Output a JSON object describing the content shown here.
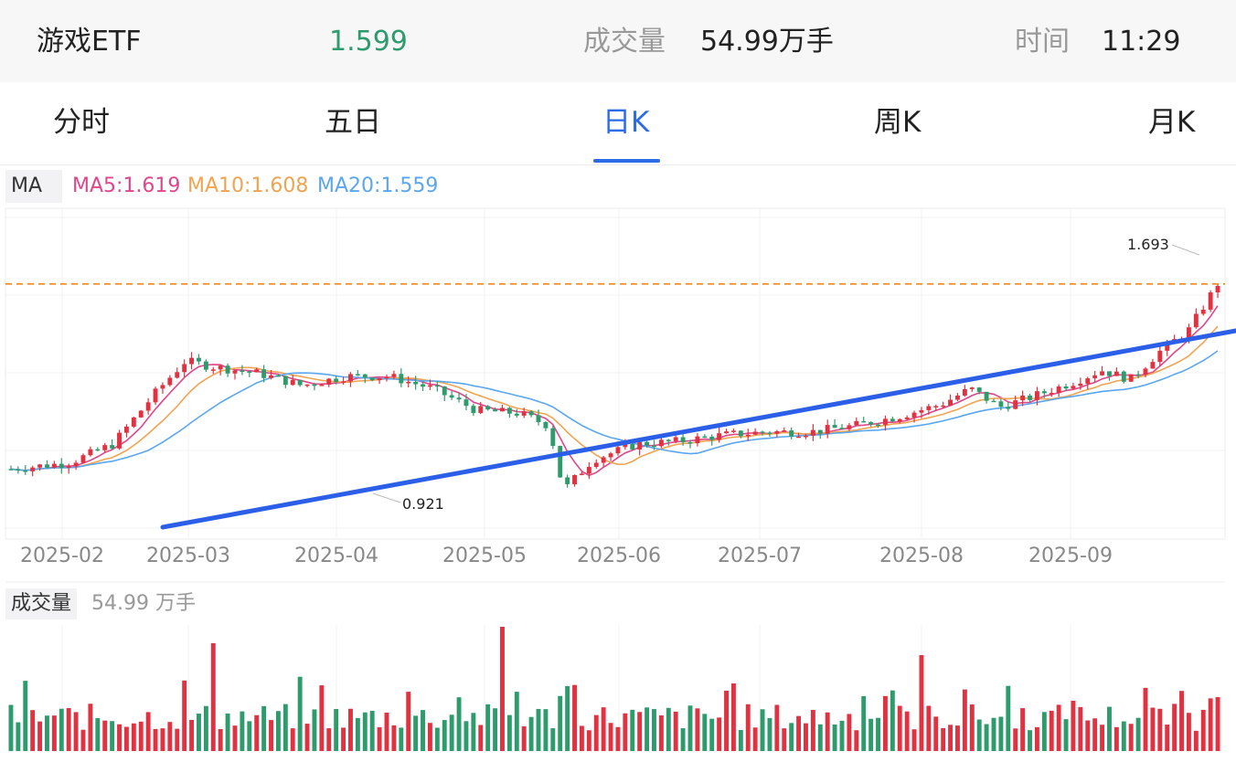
{
  "header": {
    "name": "游戏ETF",
    "price": "1.599",
    "volume_label": "成交量",
    "volume_value": "54.99万手",
    "time_label": "时间",
    "time_value": "11:29"
  },
  "tabs": [
    {
      "label": "分时",
      "active": false
    },
    {
      "label": "五日",
      "active": false
    },
    {
      "label": "日K",
      "active": true
    },
    {
      "label": "周K",
      "active": false
    },
    {
      "label": "月K",
      "active": false
    }
  ],
  "ma": {
    "tag": "MA",
    "ma5": "MA5:1.619",
    "ma10": "MA10:1.608",
    "ma20": "MA20:1.559"
  },
  "colors": {
    "up": "#e03240",
    "down": "#2e9b6d",
    "ma5": "#e0468a",
    "ma10": "#f2a350",
    "ma20": "#5aa7f0",
    "trend": "#2c5fe8",
    "price_line": "#f08a1e",
    "active_tab": "#2b6be6"
  },
  "chart_data": {
    "type": "candlestick",
    "x_tick_labels": [
      "2025-02",
      "2025-03",
      "2025-04",
      "2025-05",
      "2025-06",
      "2025-07",
      "2025-08",
      "2025-09"
    ],
    "annotations": [
      {
        "text": "1.693",
        "label": "high"
      },
      {
        "text": "0.921",
        "label": "low"
      }
    ],
    "current_price_line": 1.599,
    "trend_line": {
      "description": "rising support line",
      "color": "blue"
    },
    "ohlc_series": [],
    "series": [
      {
        "name": "MA5",
        "last": 1.619
      },
      {
        "name": "MA10",
        "last": 1.608
      },
      {
        "name": "MA20",
        "last": 1.559
      }
    ]
  },
  "volume": {
    "label": "成交量",
    "value": "54.99 万手"
  }
}
